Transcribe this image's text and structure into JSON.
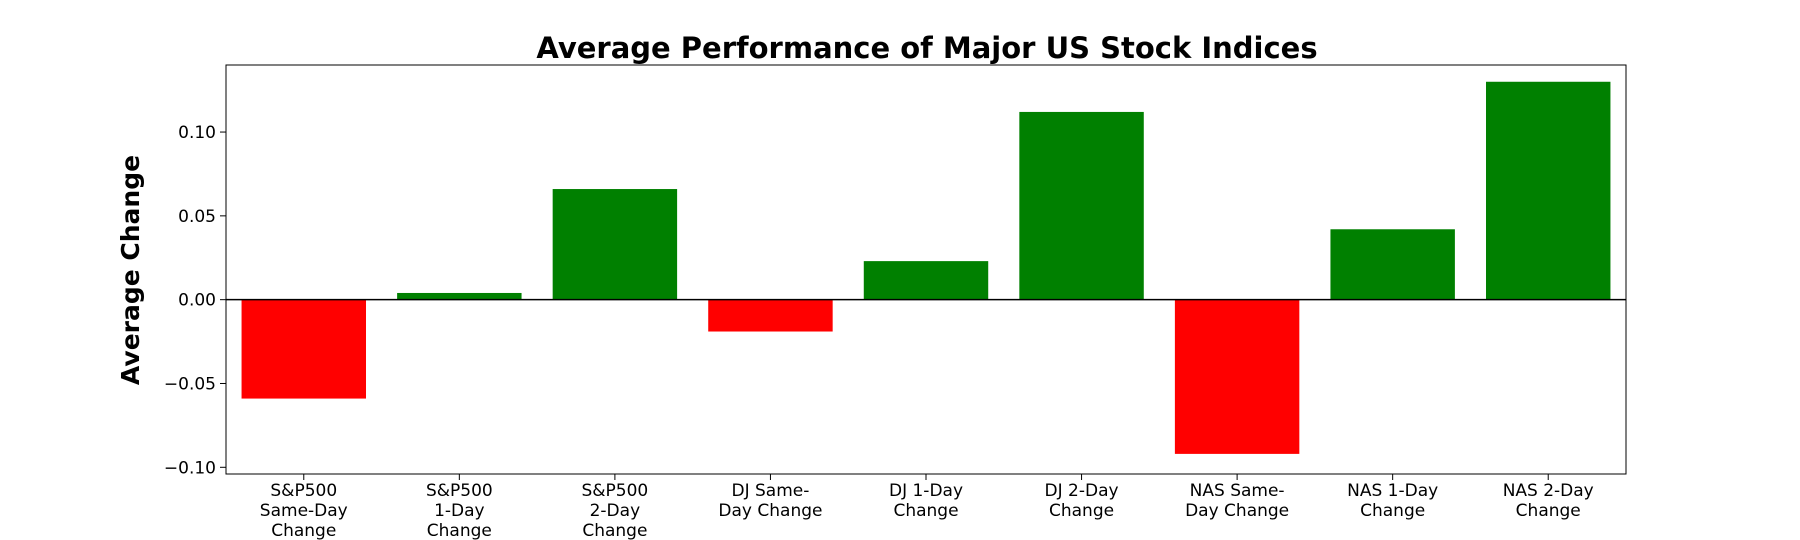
{
  "chart_data": {
    "type": "bar",
    "title": "Average Performance of Major US Stock Indices",
    "xlabel": "",
    "ylabel": "Average Change",
    "categories": [
      "S&P500 Same-Day Change",
      "S&P500 1-Day Change",
      "S&P500 2-Day Change",
      "DJ Same-Day Change",
      "DJ 1-Day Change",
      "DJ 2-Day Change",
      "NAS Same-Day Change",
      "NAS 1-Day Change",
      "NAS 2-Day Change"
    ],
    "category_label_lines": [
      [
        "S&P500",
        "Same-Day",
        "Change"
      ],
      [
        "S&P500",
        "1-Day",
        "Change"
      ],
      [
        "S&P500",
        "2-Day",
        "Change"
      ],
      [
        "DJ Same-",
        "Day Change"
      ],
      [
        "DJ 1-Day",
        "Change"
      ],
      [
        "DJ 2-Day",
        "Change"
      ],
      [
        "NAS Same-",
        "Day Change"
      ],
      [
        "NAS 1-Day",
        "Change"
      ],
      [
        "NAS 2-Day",
        "Change"
      ]
    ],
    "values": [
      -0.059,
      0.004,
      0.066,
      -0.019,
      0.023,
      0.112,
      -0.092,
      0.042,
      0.13
    ],
    "ylim": [
      -0.104,
      0.14
    ],
    "yticks": [
      -0.1,
      -0.05,
      0.0,
      0.05,
      0.1
    ],
    "ytick_labels": [
      "−0.10",
      "−0.05",
      "0.00",
      "0.05",
      "0.10"
    ],
    "positive_color": "#008000",
    "negative_color": "#ff0000",
    "zero_line": true,
    "grid": false
  }
}
